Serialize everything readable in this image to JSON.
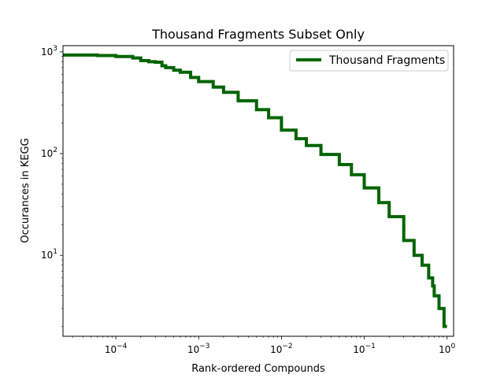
{
  "chart_data": {
    "type": "line",
    "title": "Thousand Fragments Subset Only",
    "xlabel": "Rank-ordered Compounds",
    "ylabel": "Occurances in KEGG",
    "xscale": "log",
    "yscale": "log",
    "xlim": [
      2.3e-05,
      1.2
    ],
    "ylim": [
      1.6,
      1150
    ],
    "grid": false,
    "legend_position": "top-right",
    "x_ticks": [
      {
        "value": 0.0001,
        "base": "10",
        "exp": "−4"
      },
      {
        "value": 0.001,
        "base": "10",
        "exp": "−3"
      },
      {
        "value": 0.01,
        "base": "10",
        "exp": "−2"
      },
      {
        "value": 0.1,
        "base": "10",
        "exp": "−1"
      },
      {
        "value": 1,
        "base": "10",
        "exp": "0"
      }
    ],
    "y_ticks": [
      {
        "value": 10,
        "base": "10",
        "exp": "1"
      },
      {
        "value": 100,
        "base": "10",
        "exp": "2"
      },
      {
        "value": 1000,
        "base": "10",
        "exp": "3"
      }
    ],
    "series": [
      {
        "name": "Thousand Fragments",
        "color": "#006400",
        "step": true,
        "x": [
          2.3e-05,
          6e-05,
          0.0001,
          0.00016,
          0.0002,
          0.00025,
          0.0003,
          0.00036,
          0.0004,
          0.0005,
          0.0006,
          0.0008,
          0.001,
          0.0015,
          0.002,
          0.003,
          0.005,
          0.007,
          0.01,
          0.015,
          0.02,
          0.03,
          0.05,
          0.07,
          0.1,
          0.15,
          0.2,
          0.3,
          0.4,
          0.5,
          0.6,
          0.67,
          0.7,
          0.78,
          0.8,
          0.88,
          0.92,
          1.0
        ],
        "y": [
          930,
          920,
          900,
          870,
          820,
          800,
          790,
          730,
          700,
          660,
          630,
          560,
          510,
          450,
          400,
          330,
          270,
          225,
          170,
          140,
          120,
          98,
          78,
          62,
          46,
          33,
          24,
          14,
          10,
          8,
          6,
          5,
          4,
          4,
          3,
          3,
          2,
          2
        ]
      }
    ]
  }
}
